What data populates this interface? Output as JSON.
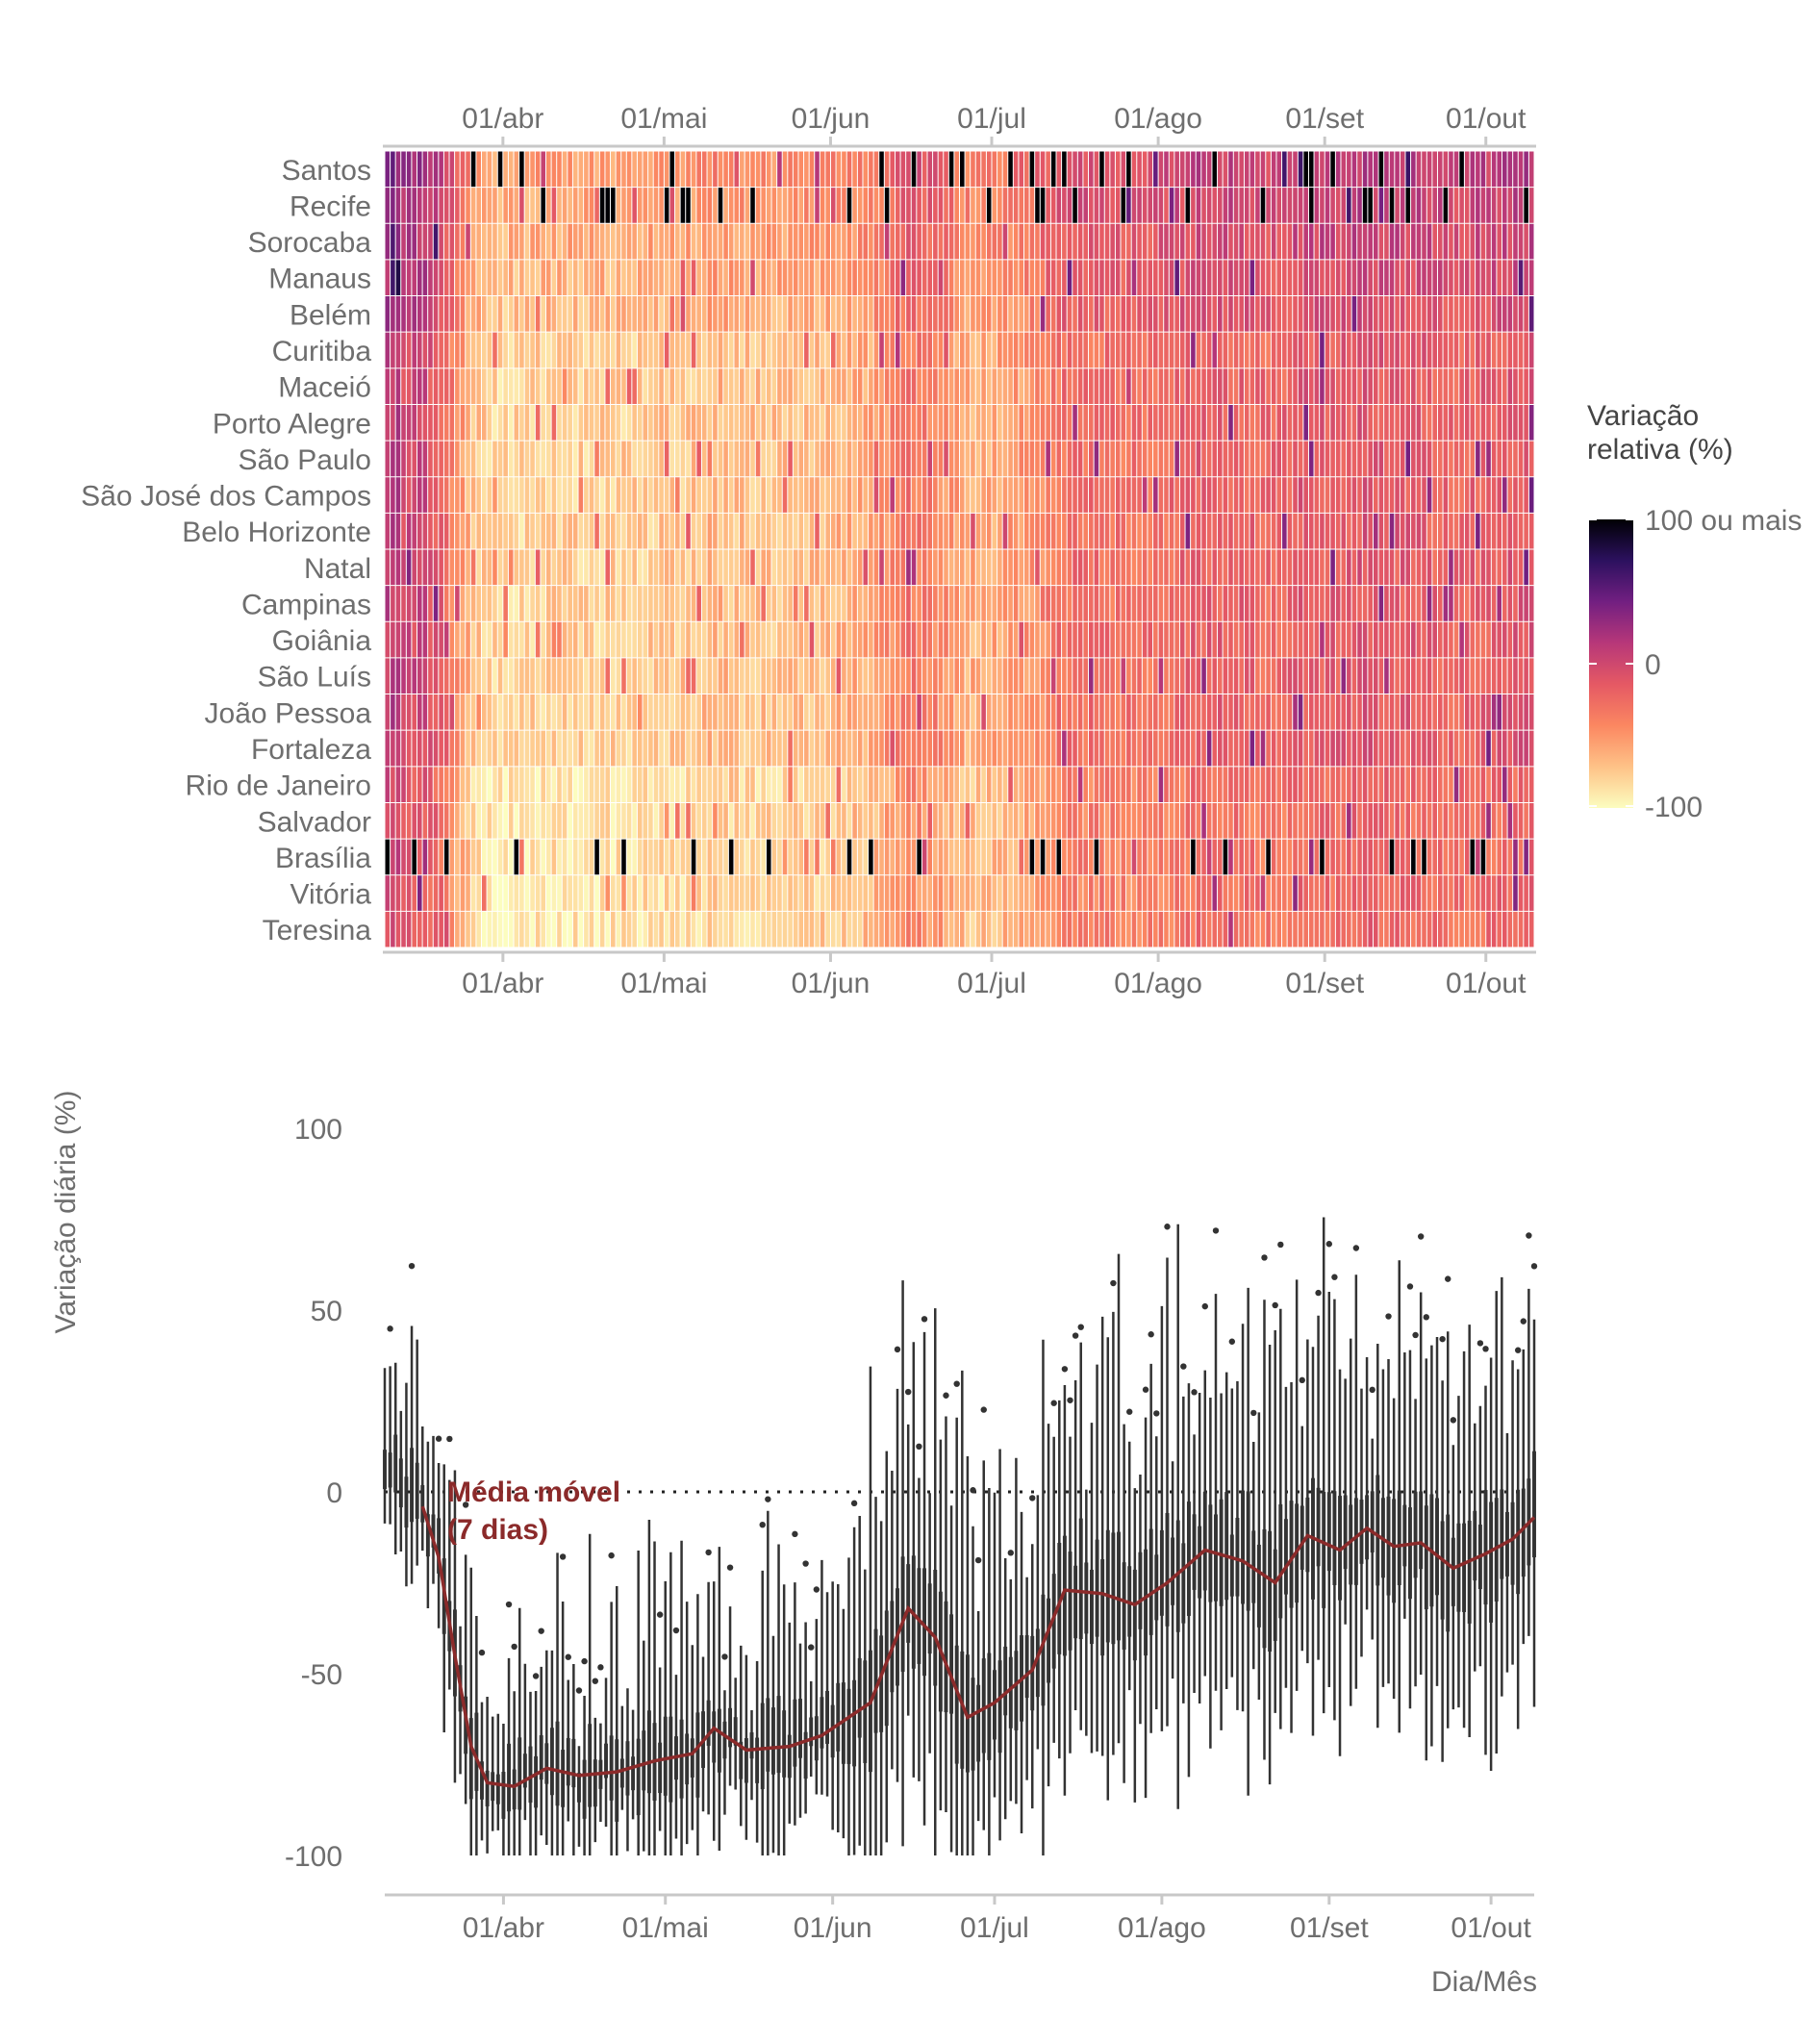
{
  "chart_data": [
    {
      "type": "heatmap",
      "title": "",
      "xlabel": "",
      "ylabel": "",
      "x_ticks": [
        "01/abr",
        "01/mai",
        "01/jun",
        "01/jul",
        "01/ago",
        "01/set",
        "01/out"
      ],
      "x_tick_dates": [
        "2020-04-01",
        "2020-05-01",
        "2020-06-01",
        "2020-07-01",
        "2020-08-01",
        "2020-09-01",
        "2020-10-01"
      ],
      "x_range": [
        "2020-03-10",
        "2020-10-09"
      ],
      "cities": [
        "Santos",
        "Recife",
        "Sorocaba",
        "Manaus",
        "Belém",
        "Curitiba",
        "Maceió",
        "Porto Alegre",
        "São Paulo",
        "São José dos Campos",
        "Belo Horizonte",
        "Natal",
        "Campinas",
        "Goiânia",
        "São Luís",
        "João Pessoa",
        "Fortaleza",
        "Rio de Janeiro",
        "Salvador",
        "Brasília",
        "Vitória",
        "Teresina"
      ],
      "legend": {
        "title_line1": "Variação",
        "title_line2": "relativa (%)",
        "labels": [
          "100 ou mais",
          "0",
          "-100"
        ],
        "range": [
          -100,
          100
        ],
        "palette": [
          "#fcfdbf",
          "#fec287",
          "#fb8761",
          "#e55964",
          "#b73779",
          "#721f81",
          "#2c115f",
          "#000004"
        ]
      }
    },
    {
      "type": "box",
      "title": "",
      "xlabel": "Dia/Mês",
      "ylabel": "Variação diária (%)",
      "y_ticks": [
        "100",
        "50",
        "0",
        "-50",
        "-100"
      ],
      "ylim": [
        -110,
        105
      ],
      "x_ticks": [
        "01/abr",
        "01/mai",
        "01/jun",
        "01/jul",
        "01/ago",
        "01/set",
        "01/out"
      ],
      "x_tick_dates": [
        "2020-04-01",
        "2020-05-01",
        "2020-06-01",
        "2020-07-01",
        "2020-08-01",
        "2020-09-01",
        "2020-10-01"
      ],
      "reference_line": 0,
      "annotation_line1": "Média móvel",
      "annotation_line2": "(7 dias)",
      "moving_average_color": "#8b2a2a",
      "box_color": "#333333",
      "moving_average": [
        {
          "date": "2020-03-17",
          "y": -4
        },
        {
          "date": "2020-03-20",
          "y": -18
        },
        {
          "date": "2020-03-23",
          "y": -45
        },
        {
          "date": "2020-03-26",
          "y": -70
        },
        {
          "date": "2020-03-29",
          "y": -80
        },
        {
          "date": "2020-04-03",
          "y": -81
        },
        {
          "date": "2020-04-09",
          "y": -76
        },
        {
          "date": "2020-04-15",
          "y": -78
        },
        {
          "date": "2020-04-22",
          "y": -77
        },
        {
          "date": "2020-04-29",
          "y": -74
        },
        {
          "date": "2020-05-06",
          "y": -72
        },
        {
          "date": "2020-05-10",
          "y": -65
        },
        {
          "date": "2020-05-16",
          "y": -71
        },
        {
          "date": "2020-05-24",
          "y": -70
        },
        {
          "date": "2020-05-30",
          "y": -67
        },
        {
          "date": "2020-06-08",
          "y": -58
        },
        {
          "date": "2020-06-15",
          "y": -32
        },
        {
          "date": "2020-06-20",
          "y": -40
        },
        {
          "date": "2020-06-26",
          "y": -62
        },
        {
          "date": "2020-07-01",
          "y": -58
        },
        {
          "date": "2020-07-08",
          "y": -49
        },
        {
          "date": "2020-07-14",
          "y": -27
        },
        {
          "date": "2020-07-21",
          "y": -28
        },
        {
          "date": "2020-07-27",
          "y": -31
        },
        {
          "date": "2020-08-02",
          "y": -25
        },
        {
          "date": "2020-08-09",
          "y": -16
        },
        {
          "date": "2020-08-16",
          "y": -19
        },
        {
          "date": "2020-08-22",
          "y": -25
        },
        {
          "date": "2020-08-28",
          "y": -12
        },
        {
          "date": "2020-09-03",
          "y": -16
        },
        {
          "date": "2020-09-08",
          "y": -10
        },
        {
          "date": "2020-09-13",
          "y": -15
        },
        {
          "date": "2020-09-18",
          "y": -14
        },
        {
          "date": "2020-09-24",
          "y": -21
        },
        {
          "date": "2020-09-30",
          "y": -17
        },
        {
          "date": "2020-10-05",
          "y": -13
        },
        {
          "date": "2020-10-09",
          "y": -7
        }
      ]
    }
  ]
}
